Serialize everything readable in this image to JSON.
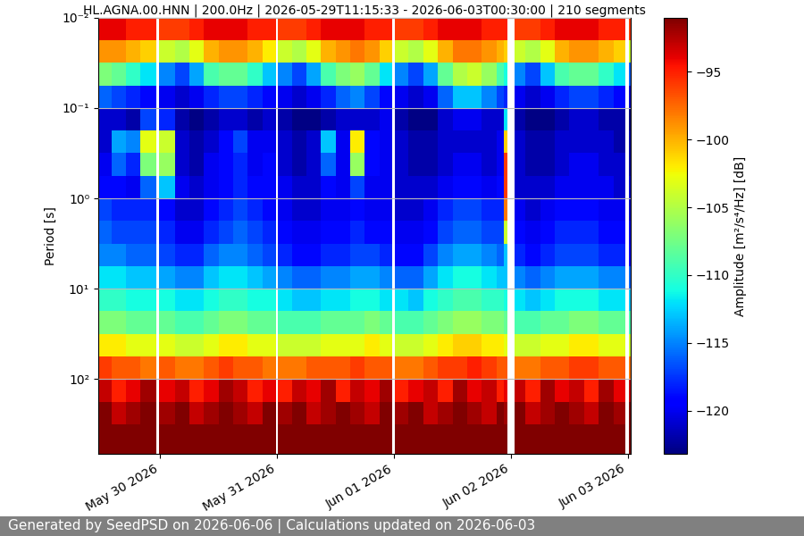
{
  "chart_data": {
    "type": "heatmap",
    "title": "HL.AGNA.00.HNN | 200.0Hz | 2026-05-29T11:15:33 - 2026-06-03T00:30:00 | 210 segments",
    "y_label": "Period [s]",
    "footer": "Generated by SeedPSD on 2026-06-06 | Calculations updated on 2026-06-03",
    "log": "y",
    "grid": true,
    "xlim": [
      "2026-05-29T11:15:33",
      "2026-06-03T00:30:00"
    ],
    "xticks": [
      {
        "value": "2026-05-30T00:00:00",
        "label": "May 30 2026"
      },
      {
        "value": "2026-05-31T00:00:00",
        "label": "May 31 2026"
      },
      {
        "value": "2026-06-01T00:00:00",
        "label": "Jun 01 2026"
      },
      {
        "value": "2026-06-02T00:00:00",
        "label": "Jun 02 2026"
      },
      {
        "value": "2026-06-03T00:00:00",
        "label": "Jun 03 2026"
      }
    ],
    "ylim": [
      676,
      0.01
    ],
    "yticks": [
      {
        "value": 0.01,
        "label": "10⁻²"
      },
      {
        "value": 0.1,
        "label": "10⁻¹"
      },
      {
        "value": 1,
        "label": "10⁰"
      },
      {
        "value": 10,
        "label": "10¹"
      },
      {
        "value": 100,
        "label": "10²"
      }
    ],
    "time_edges": [
      "2026-05-29T11:15:33",
      "2026-05-29T14:00",
      "2026-05-29T17:00",
      "2026-05-29T20:00",
      "2026-05-29T23:10",
      "2026-05-29T23:50",
      "2026-05-30T03:00",
      "2026-05-30T06:00",
      "2026-05-30T09:00",
      "2026-05-30T12:00",
      "2026-05-30T15:00",
      "2026-05-30T18:00",
      "2026-05-30T21:00",
      "2026-05-30T23:45",
      "2026-05-31T00:10",
      "2026-05-31T03:00",
      "2026-05-31T06:00",
      "2026-05-31T09:00",
      "2026-05-31T12:00",
      "2026-05-31T15:00",
      "2026-05-31T18:00",
      "2026-05-31T21:00",
      "2026-05-31T23:40",
      "2026-06-01T00:05",
      "2026-06-01T03:00",
      "2026-06-01T06:00",
      "2026-06-01T09:00",
      "2026-06-01T12:00",
      "2026-06-01T15:00",
      "2026-06-01T18:00",
      "2026-06-01T21:00",
      "2026-06-01T22:30",
      "2026-06-01T23:20",
      "2026-06-02T00:45",
      "2026-06-02T03:00",
      "2026-06-02T06:00",
      "2026-06-02T09:00",
      "2026-06-02T12:00",
      "2026-06-02T15:00",
      "2026-06-02T18:00",
      "2026-06-02T21:00",
      "2026-06-02T23:30",
      "2026-06-03T00:15",
      "2026-06-03T00:30:00"
    ],
    "period_edges": [
      0.01,
      0.0178,
      0.0316,
      0.0562,
      0.1,
      0.178,
      0.316,
      0.562,
      1,
      1.78,
      3.16,
      5.62,
      10,
      17.8,
      31.6,
      56.2,
      100,
      178,
      316,
      676
    ],
    "cells": [
      [
        -94,
        -94,
        -95,
        -95,
        null,
        -96,
        -96,
        -95,
        -94,
        -94,
        -94,
        -95,
        -95,
        null,
        -96,
        -96,
        -95,
        -94,
        -94,
        -94,
        -95,
        -95,
        null,
        -96,
        -96,
        -95,
        -94,
        -94,
        -94,
        -95,
        -95,
        -95,
        null,
        -96,
        -96,
        -95,
        -94,
        -94,
        -94,
        -95,
        -95,
        null,
        -96
      ],
      [
        -99,
        -99,
        -100,
        -101,
        null,
        -104,
        -105,
        -103,
        -100,
        -99,
        -99,
        -100,
        -102,
        null,
        -104,
        -105,
        -103,
        -100,
        -99,
        -98,
        -99,
        -101,
        null,
        -104,
        -105,
        -103,
        -100,
        -98,
        -98,
        -99,
        -100,
        -101,
        null,
        -104,
        -105,
        -103,
        -100,
        -99,
        -99,
        -100,
        -101,
        null,
        -104
      ],
      [
        -107,
        -108,
        -110,
        -112,
        null,
        -115,
        -117,
        -114,
        -109,
        -108,
        -108,
        -110,
        -113,
        null,
        -115,
        -117,
        -114,
        -109,
        -107,
        -106,
        -108,
        -112,
        null,
        -115,
        -117,
        -114,
        -108,
        -105,
        -104,
        -106,
        -109,
        -111,
        null,
        -115,
        -117,
        -113,
        -109,
        -108,
        -108,
        -110,
        -112,
        null,
        -116
      ],
      [
        -116,
        -117,
        -118,
        -119,
        null,
        -120,
        -121,
        -120,
        -118,
        -117,
        -117,
        -118,
        -119,
        null,
        -120,
        -121,
        -120,
        -118,
        -116,
        -115,
        -117,
        -119,
        null,
        -120,
        -121,
        -120,
        -116,
        -113,
        -113,
        -115,
        -117,
        -118,
        null,
        -120,
        -121,
        -120,
        -118,
        -117,
        -117,
        -118,
        -119,
        null,
        -121
      ],
      [
        -121,
        -121,
        -122,
        -117,
        null,
        -118,
        -122,
        -123,
        -122,
        -121,
        -121,
        -122,
        -121,
        null,
        -122,
        -123,
        -123,
        -122,
        -121,
        -121,
        -121,
        -120,
        null,
        -122,
        -123,
        -123,
        -121,
        -120,
        -120,
        -121,
        -121,
        -112,
        null,
        -122,
        -123,
        -123,
        -122,
        -121,
        -121,
        -122,
        -122,
        null,
        -123
      ],
      [
        -121,
        -114,
        -115,
        -103,
        null,
        -104,
        -121,
        -122,
        -121,
        -119,
        -117,
        -120,
        -120,
        null,
        -121,
        -122,
        -121,
        -113,
        -120,
        -102,
        -119,
        -120,
        null,
        -121,
        -122,
        -122,
        -121,
        -121,
        -121,
        -121,
        -120,
        -101,
        null,
        -121,
        -122,
        -122,
        -121,
        -121,
        -121,
        -121,
        -122,
        null,
        -122
      ],
      [
        -120,
        -116,
        -118,
        -107,
        null,
        -106,
        -121,
        -122,
        -120,
        -119,
        -118,
        -120,
        -119,
        null,
        -121,
        -122,
        -121,
        -116,
        -120,
        -106,
        -119,
        -120,
        null,
        -121,
        -122,
        -122,
        -121,
        -120,
        -120,
        -121,
        -120,
        -96,
        null,
        -121,
        -122,
        -122,
        -121,
        -120,
        -120,
        -121,
        -121,
        null,
        -122
      ],
      [
        -119,
        -119,
        -120,
        -116,
        null,
        -113,
        -120,
        -121,
        -120,
        -119,
        -118,
        -119,
        -119,
        null,
        -120,
        -121,
        -121,
        -119,
        -120,
        -117,
        -120,
        -120,
        null,
        -121,
        -121,
        -121,
        -120,
        -119,
        -119,
        -120,
        -119,
        -96,
        null,
        -121,
        -121,
        -121,
        -120,
        -120,
        -120,
        -120,
        -121,
        null,
        -121
      ],
      [
        -117,
        -118,
        -118,
        -118,
        null,
        -119,
        -121,
        -121,
        -119,
        -118,
        -117,
        -118,
        -119,
        null,
        -120,
        -121,
        -121,
        -120,
        -120,
        -119,
        -120,
        -120,
        null,
        -121,
        -121,
        -120,
        -118,
        -117,
        -117,
        -118,
        -118,
        -98,
        null,
        -120,
        -121,
        -120,
        -119,
        -119,
        -119,
        -120,
        -120,
        null,
        -121
      ],
      [
        -116,
        -117,
        -117,
        -117,
        null,
        -118,
        -120,
        -120,
        -118,
        -117,
        -116,
        -117,
        -118,
        null,
        -119,
        -120,
        -120,
        -119,
        -119,
        -118,
        -119,
        -119,
        null,
        -120,
        -120,
        -119,
        -117,
        -116,
        -116,
        -117,
        -117,
        -104,
        null,
        -119,
        -120,
        -119,
        -118,
        -118,
        -118,
        -119,
        -119,
        null,
        -120
      ],
      [
        -115,
        -115,
        -116,
        -116,
        null,
        -117,
        -118,
        -118,
        -116,
        -115,
        -115,
        -116,
        -117,
        null,
        -118,
        -119,
        -119,
        -118,
        -118,
        -117,
        -117,
        -118,
        null,
        -119,
        -119,
        -117,
        -115,
        -114,
        -114,
        -115,
        -116,
        -113,
        null,
        -118,
        -119,
        -118,
        -117,
        -117,
        -117,
        -118,
        -118,
        null,
        -119
      ],
      [
        -112,
        -112,
        -113,
        -113,
        null,
        -114,
        -115,
        -115,
        -113,
        -112,
        -112,
        -113,
        -114,
        null,
        -115,
        -116,
        -116,
        -115,
        -115,
        -114,
        -114,
        -115,
        null,
        -116,
        -116,
        -114,
        -112,
        -111,
        -111,
        -112,
        -113,
        -113,
        null,
        -115,
        -116,
        -115,
        -114,
        -114,
        -114,
        -115,
        -115,
        null,
        -116
      ],
      [
        -110,
        -110,
        -111,
        -111,
        null,
        -111,
        -112,
        -112,
        -111,
        -110,
        -110,
        -111,
        -111,
        null,
        -112,
        -113,
        -113,
        -112,
        -112,
        -111,
        -111,
        -112,
        null,
        -112,
        -113,
        -111,
        -110,
        -109,
        -109,
        -110,
        -110,
        -111,
        null,
        -112,
        -113,
        -112,
        -111,
        -111,
        -111,
        -112,
        -112,
        null,
        -113
      ],
      [
        -107,
        -107,
        -108,
        -108,
        null,
        -108,
        -109,
        -109,
        -108,
        -107,
        -107,
        -108,
        -108,
        null,
        -109,
        -109,
        -109,
        -108,
        -108,
        -108,
        -107,
        -108,
        null,
        -109,
        -109,
        -108,
        -107,
        -106,
        -106,
        -107,
        -107,
        -108,
        null,
        -109,
        -109,
        -108,
        -108,
        -107,
        -107,
        -108,
        -108,
        null,
        -109
      ],
      [
        -102,
        -102,
        -103,
        -103,
        null,
        -103,
        -104,
        -104,
        -103,
        -102,
        -102,
        -103,
        -103,
        null,
        -104,
        -104,
        -104,
        -103,
        -103,
        -103,
        -102,
        -103,
        null,
        -104,
        -104,
        -103,
        -102,
        -101,
        -101,
        -102,
        -102,
        -103,
        null,
        -104,
        -104,
        -103,
        -103,
        -102,
        -102,
        -103,
        -103,
        null,
        -104
      ],
      [
        -96,
        -97,
        -97,
        -98,
        null,
        -97,
        -98,
        -98,
        -97,
        -96,
        -97,
        -97,
        -98,
        null,
        -98,
        -98,
        -97,
        -97,
        -97,
        -96,
        -97,
        -97,
        null,
        -98,
        -98,
        -97,
        -96,
        -96,
        -95,
        -96,
        -97,
        -97,
        null,
        -98,
        -98,
        -97,
        -97,
        -96,
        -96,
        -97,
        -97,
        null,
        -98
      ],
      [
        -93,
        -95,
        -94,
        -92,
        null,
        -94,
        -93,
        -95,
        -94,
        -92,
        -93,
        -95,
        -94,
        null,
        -95,
        -93,
        -94,
        -92,
        -95,
        -93,
        -94,
        -92,
        null,
        -95,
        -94,
        -93,
        -95,
        -92,
        -94,
        -93,
        -95,
        -94,
        null,
        -93,
        -95,
        -92,
        -94,
        -93,
        -95,
        -92,
        -94,
        null,
        -93
      ],
      [
        -91,
        -93,
        -92,
        -91,
        null,
        -92,
        -91,
        -93,
        -92,
        -91,
        -92,
        -93,
        -91,
        null,
        -92,
        -91,
        -93,
        -92,
        -91,
        -92,
        -93,
        -91,
        null,
        -92,
        -91,
        -93,
        -92,
        -91,
        -92,
        -93,
        -91,
        -92,
        null,
        -91,
        -93,
        -92,
        -91,
        -92,
        -93,
        -91,
        -92,
        null,
        -91
      ],
      [
        -90,
        -91,
        -90,
        -90,
        null,
        -91,
        -90,
        -90,
        -91,
        -90,
        -90,
        -91,
        -90,
        null,
        -90,
        -91,
        -90,
        -90,
        -91,
        -90,
        -90,
        -91,
        null,
        -90,
        -91,
        -90,
        -90,
        -91,
        -90,
        -90,
        -91,
        -90,
        null,
        -90,
        -91,
        -90,
        -90,
        -91,
        -90,
        -90,
        -91,
        null,
        -90
      ]
    ],
    "colorbar": {
      "label": "Amplitude [m²/s⁴/Hz] [dB]",
      "range": [
        -123.2,
        -91
      ],
      "ticks": [
        {
          "value": -95,
          "label": "−95"
        },
        {
          "value": -100,
          "label": "−100"
        },
        {
          "value": -105,
          "label": "−105"
        },
        {
          "value": -110,
          "label": "−110"
        },
        {
          "value": -115,
          "label": "−115"
        },
        {
          "value": -120,
          "label": "−120"
        }
      ]
    }
  }
}
